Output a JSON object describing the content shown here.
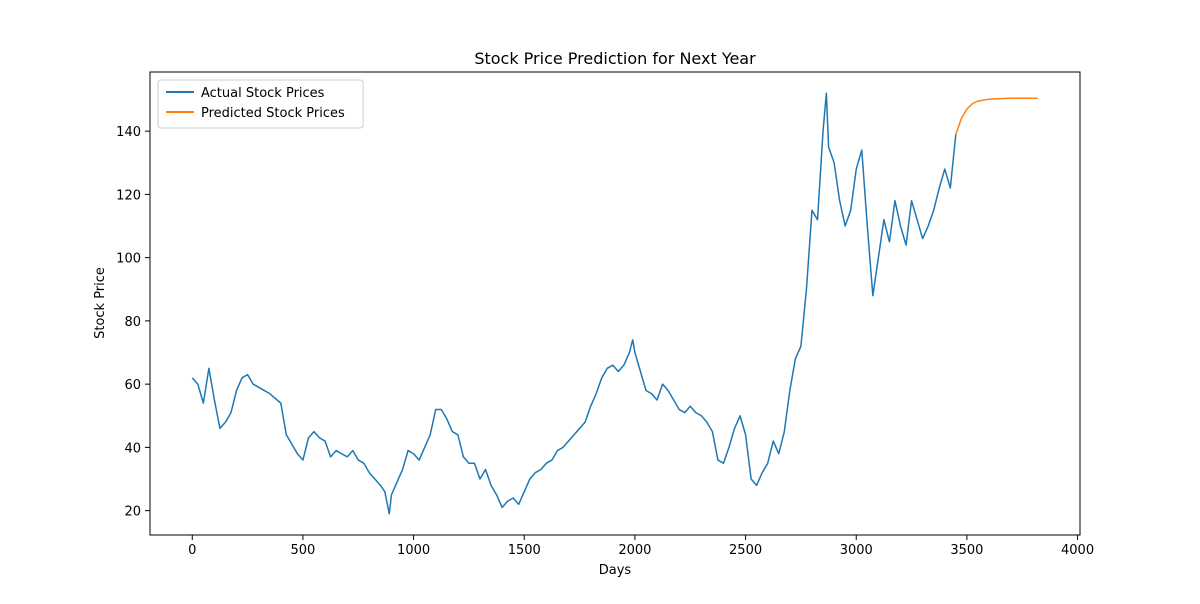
{
  "chart_data": {
    "type": "line",
    "title": "Stock Price Prediction for Next Year",
    "x_label": "Days",
    "y_label": "Stock Price",
    "xlim": [
      -191,
      4011
    ],
    "ylim": [
      12.3,
      158.7
    ],
    "xticks": [
      0,
      500,
      1000,
      1500,
      2000,
      2500,
      3000,
      3500,
      4000
    ],
    "yticks": [
      20,
      40,
      60,
      80,
      100,
      120,
      140
    ],
    "legend": "upper-left",
    "series": [
      {
        "name": "Actual Stock Prices",
        "color": "#1f77b4",
        "x": [
          0,
          25,
          50,
          75,
          100,
          125,
          150,
          175,
          200,
          225,
          250,
          275,
          300,
          350,
          400,
          425,
          450,
          475,
          500,
          525,
          550,
          575,
          600,
          625,
          650,
          675,
          700,
          725,
          750,
          775,
          800,
          825,
          850,
          870,
          890,
          900,
          925,
          950,
          975,
          1000,
          1025,
          1050,
          1075,
          1100,
          1125,
          1150,
          1175,
          1200,
          1225,
          1250,
          1275,
          1300,
          1325,
          1350,
          1375,
          1400,
          1425,
          1450,
          1475,
          1500,
          1525,
          1550,
          1575,
          1600,
          1625,
          1650,
          1675,
          1700,
          1725,
          1750,
          1775,
          1800,
          1825,
          1850,
          1875,
          1900,
          1925,
          1950,
          1975,
          1990,
          2000,
          2025,
          2050,
          2075,
          2100,
          2125,
          2150,
          2175,
          2200,
          2225,
          2250,
          2275,
          2300,
          2325,
          2350,
          2375,
          2400,
          2425,
          2450,
          2475,
          2500,
          2525,
          2550,
          2575,
          2600,
          2625,
          2650,
          2675,
          2700,
          2725,
          2750,
          2775,
          2800,
          2825,
          2850,
          2865,
          2875,
          2900,
          2925,
          2950,
          2975,
          3000,
          3025,
          3050,
          3075,
          3100,
          3125,
          3150,
          3175,
          3200,
          3225,
          3250,
          3275,
          3300,
          3325,
          3350,
          3375,
          3400,
          3425,
          3450
        ],
        "values": [
          62,
          60,
          54,
          65,
          55,
          46,
          48,
          51,
          58,
          62,
          63,
          60,
          59,
          57,
          54,
          44,
          41,
          38,
          36,
          43,
          45,
          43,
          42,
          37,
          39,
          38,
          37,
          39,
          36,
          35,
          32,
          30,
          28,
          26,
          19,
          25,
          29,
          33,
          39,
          38,
          36,
          40,
          44,
          52,
          52,
          49,
          45,
          44,
          37,
          35,
          35,
          30,
          33,
          28,
          25,
          21,
          23,
          24,
          22,
          26,
          30,
          32,
          33,
          35,
          36,
          39,
          40,
          42,
          44,
          46,
          48,
          53,
          57,
          62,
          65,
          66,
          64,
          66,
          70,
          74,
          70,
          64,
          58,
          57,
          55,
          60,
          58,
          55,
          52,
          51,
          53,
          51,
          50,
          48,
          45,
          36,
          35,
          40,
          46,
          50,
          44,
          30,
          28,
          32,
          35,
          42,
          38,
          45,
          58,
          68,
          72,
          90,
          115,
          112,
          140,
          152,
          135,
          130,
          118,
          110,
          115,
          128,
          134,
          110,
          88,
          100,
          112,
          105,
          118,
          110,
          104,
          118,
          112,
          106,
          110,
          115,
          122,
          128,
          122,
          139
        ]
      },
      {
        "name": "Predicted Stock Prices",
        "color": "#ff7f0e",
        "x": [
          3450,
          3475,
          3500,
          3525,
          3550,
          3600,
          3650,
          3700,
          3750,
          3820
        ],
        "values": [
          139,
          144,
          147,
          148.7,
          149.5,
          150.1,
          150.3,
          150.4,
          150.4,
          150.4
        ]
      }
    ]
  }
}
